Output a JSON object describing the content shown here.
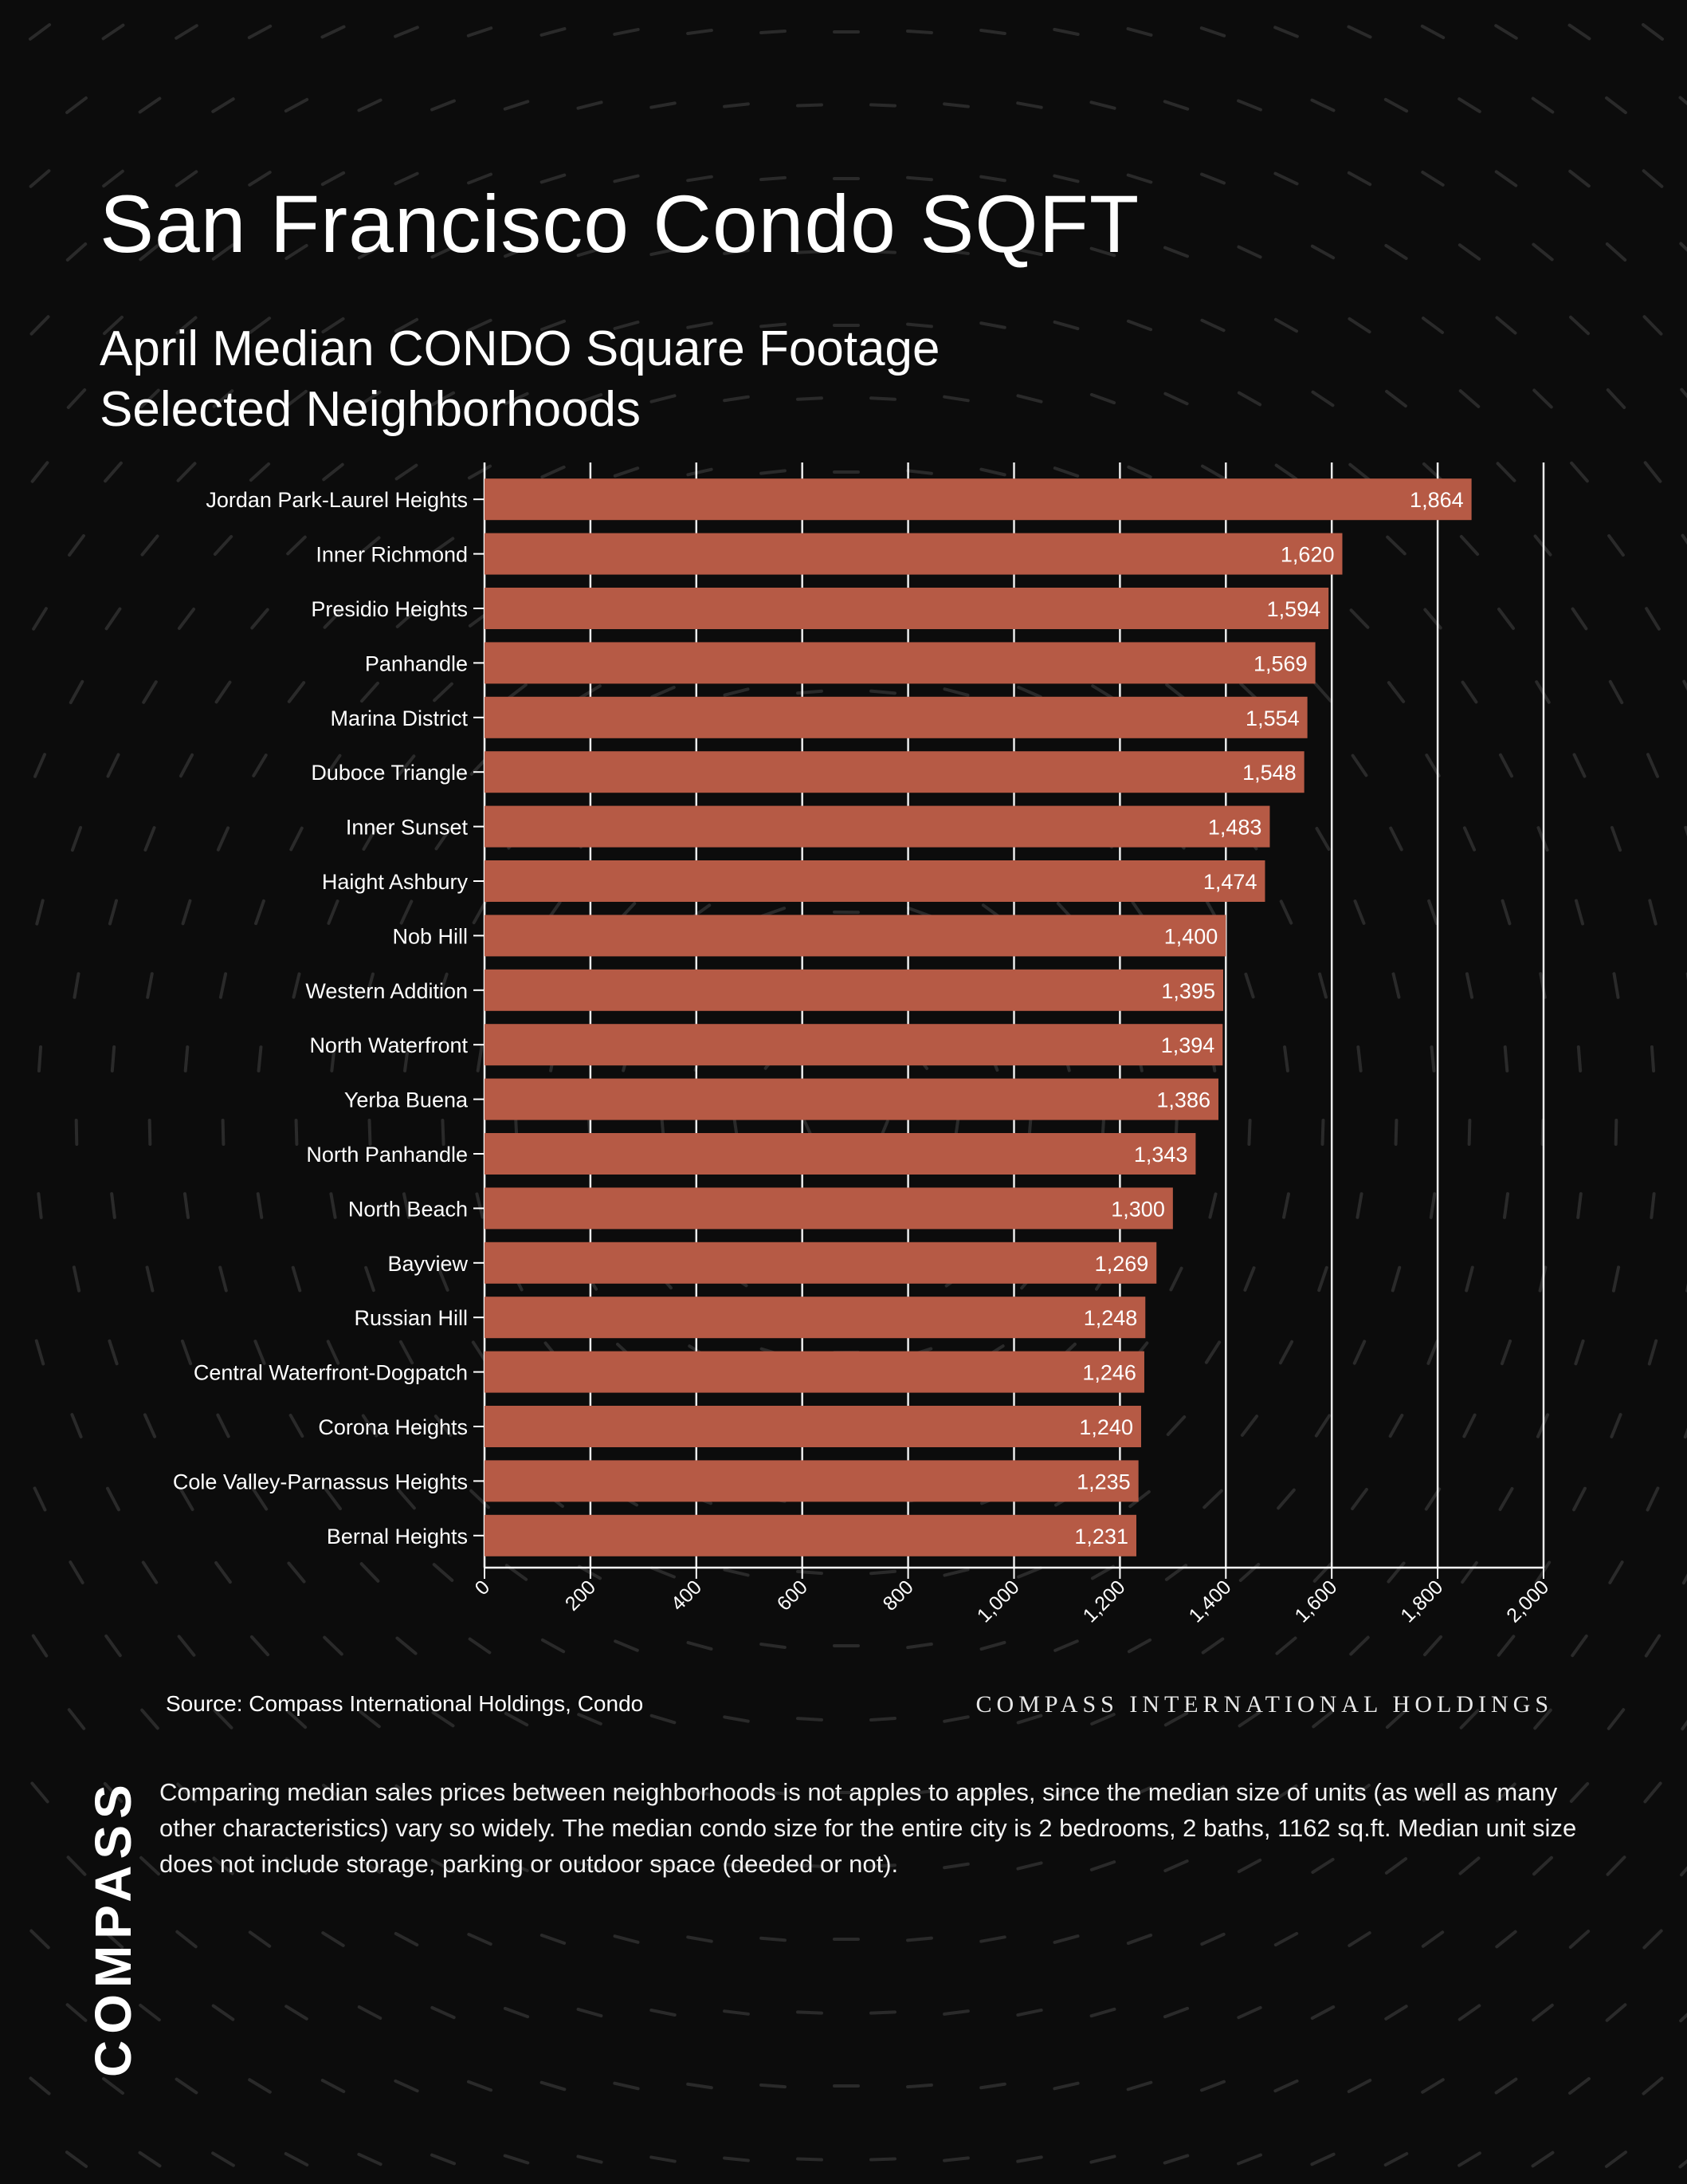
{
  "header": {
    "title": "San Francisco Condo SQFT",
    "subtitle_line1": "April Median CONDO Square Footage",
    "subtitle_line2": "Selected Neighborhoods"
  },
  "footer": {
    "source": "Source: Compass International Holdings, Condo",
    "wordmark": "COMPASS INTERNATIONAL HOLDINGS",
    "note": "Comparing median sales prices between neighborhoods is not apples to apples, since the median size of units (as well as many other characteristics) vary so widely. The median condo size for the entire city is 2 bedrooms, 2 baths, 1162 sq.ft. Median unit size does not include storage, parking or outdoor space (deeded or not).",
    "logo": "COMPASS"
  },
  "colors": {
    "background": "#0c0c0c",
    "bar": "#b65a45",
    "grid": "#ffffff",
    "text": "#ffffff"
  },
  "chart_data": {
    "type": "bar",
    "orientation": "horizontal",
    "title": "San Francisco Condo SQFT",
    "subtitle": "April Median CONDO Square Footage Selected Neighborhoods",
    "categories": [
      "Jordan Park-Laurel Heights",
      "Inner Richmond",
      "Presidio Heights",
      "Panhandle",
      "Marina District",
      "Duboce Triangle",
      "Inner Sunset",
      "Haight Ashbury",
      "Nob Hill",
      "Western Addition",
      "North Waterfront",
      "Yerba Buena",
      "North Panhandle",
      "North Beach",
      "Bayview",
      "Russian Hill",
      "Central Waterfront-Dogpatch",
      "Corona Heights",
      "Cole Valley-Parnassus Heights",
      "Bernal Heights"
    ],
    "values": [
      1864,
      1620,
      1594,
      1569,
      1554,
      1548,
      1483,
      1474,
      1400,
      1395,
      1394,
      1386,
      1343,
      1300,
      1269,
      1248,
      1246,
      1240,
      1235,
      1231
    ],
    "value_labels": [
      "1,864",
      "1,620",
      "1,594",
      "1,569",
      "1,554",
      "1,548",
      "1,483",
      "1,474",
      "1,400",
      "1,395",
      "1,394",
      "1,386",
      "1,343",
      "1,300",
      "1,269",
      "1,248",
      "1,246",
      "1,240",
      "1,235",
      "1,231"
    ],
    "xlim": [
      0,
      2000
    ],
    "x_ticks": [
      0,
      200,
      400,
      600,
      800,
      1000,
      1200,
      1400,
      1600,
      1800,
      2000
    ],
    "x_tick_labels": [
      "0",
      "200",
      "400",
      "600",
      "800",
      "1,000",
      "1,200",
      "1,400",
      "1,600",
      "1,800",
      "2,000"
    ],
    "xlabel": "",
    "ylabel": "",
    "grid": "vertical",
    "legend": "none"
  }
}
